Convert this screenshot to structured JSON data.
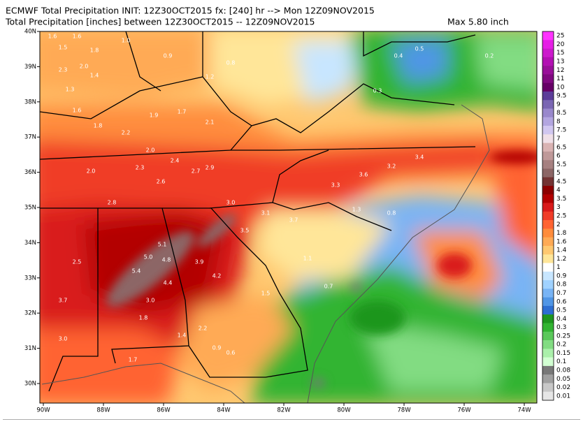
{
  "header": {
    "line1": "ECMWF Total Precipitation INIT: 12Z30OCT2015 fx: [240] hr --> Mon 12Z09NOV2015",
    "line2": "Total Precipitation [inches] between 12Z30OCT2015 -- 12Z09NOV2015",
    "max": "Max 5.80 inch"
  },
  "axes": {
    "lon_labels": [
      "90W",
      "88W",
      "86W",
      "84W",
      "82W",
      "80W",
      "78W",
      "76W",
      "74W"
    ],
    "lat_labels": [
      "40N",
      "39N",
      "38N",
      "37N",
      "36N",
      "35N",
      "34N",
      "33N",
      "32N",
      "31N",
      "30N"
    ]
  },
  "colorbar": {
    "levels": [
      25,
      20,
      15,
      13,
      12,
      11,
      10,
      9.5,
      9,
      8.5,
      8,
      7.5,
      7,
      6.5,
      6,
      5.5,
      5,
      4.5,
      4,
      3.5,
      3,
      2.5,
      2,
      1.8,
      1.6,
      1.4,
      1.2,
      1,
      0.9,
      0.8,
      0.7,
      0.6,
      0.5,
      0.4,
      0.3,
      0.25,
      0.2,
      0.15,
      0.1,
      0.08,
      0.05,
      0.02,
      0.01
    ],
    "colors": [
      "#ff33ff",
      "#e61ee6",
      "#cc19cc",
      "#b30fb3",
      "#990f99",
      "#800a80",
      "#660066",
      "#5c3d99",
      "#7a66b3",
      "#9988cc",
      "#b3a6e0",
      "#d1c7f0",
      "#f0e0e8",
      "#d9b3b3",
      "#bf9999",
      "#a68080",
      "#8c6666",
      "#733333",
      "#8c0000",
      "#b30000",
      "#d91a1a",
      "#f03c28",
      "#ff6432",
      "#ff8c3c",
      "#ffaa55",
      "#ffc870",
      "#ffe699",
      "#ffffff",
      "#c8e6ff",
      "#a0d2ff",
      "#78b4f5",
      "#5096e6",
      "#2d6ed2",
      "#1e961e",
      "#32b432",
      "#5ac85a",
      "#82dc82",
      "#aaf0aa",
      "#d2ffd2",
      "#787878",
      "#a0a0a0",
      "#c8c8c8",
      "#e6e6e6"
    ]
  },
  "map_labels": [
    "1.6",
    "1.6",
    "1.5",
    "1.8",
    "2.0",
    "2.3",
    "1.4",
    "1.3",
    "1.0",
    "0.9",
    "0.8",
    "1.2",
    "0.4",
    "0.5",
    "0.3",
    "0.2",
    "1.6",
    "1.8",
    "2.2",
    "1.9",
    "1.7",
    "2.1",
    "2.0",
    "2.4",
    "2.7",
    "2.3",
    "2.6",
    "2.9",
    "3.0",
    "3.1",
    "3.5",
    "3.7",
    "3.3",
    "3.6",
    "3.2",
    "3.4",
    "5.1",
    "5.0",
    "4.8",
    "5.4",
    "4.4",
    "3.9",
    "4.2",
    "3.0",
    "2.5",
    "2.2",
    "1.5",
    "1.1",
    "0.7",
    "0.6",
    "0.9",
    "1.4",
    "1.8",
    "3.7",
    "3.0",
    "1.7",
    "2.8",
    "2.0",
    "1.3",
    "0.8"
  ]
}
